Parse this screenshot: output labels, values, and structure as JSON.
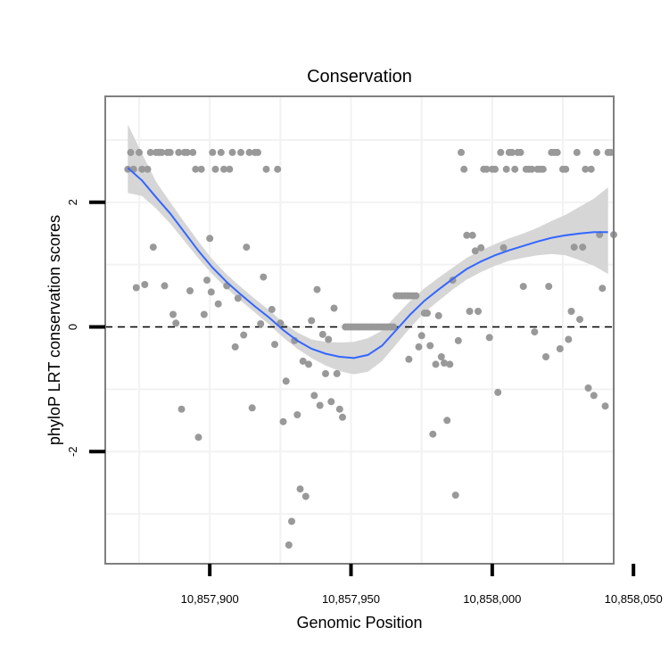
{
  "chart_data": {
    "type": "scatter",
    "title": "Conservation",
    "xlabel": "Genomic Position",
    "ylabel": "phyloP LRT conservation scores",
    "xlim": [
      10857863,
      10858043
    ],
    "ylim": [
      -3.8,
      3.7
    ],
    "x_ticks": [
      10857900,
      10857950,
      10858000,
      10858050
    ],
    "x_tick_labels": [
      "10,857,900",
      "10,857,950",
      "10,858,000",
      "10,858,050"
    ],
    "y_ticks": [
      -2,
      0,
      2
    ],
    "y_tick_labels": [
      "-2",
      "0",
      "2"
    ],
    "reference_line": {
      "y": 0,
      "style": "dashed"
    },
    "grid": true,
    "colors": {
      "points": "#999999",
      "smooth": "#3366FF",
      "band": "#d6d6d6",
      "panel_border": "#7f7f7f"
    },
    "series": [
      {
        "name": "scores",
        "points": [
          [
            10857871,
            2.53
          ],
          [
            10857872,
            2.8
          ],
          [
            10857873,
            2.53
          ],
          [
            10857874,
            0.63
          ],
          [
            10857875,
            2.8
          ],
          [
            10857876,
            2.53
          ],
          [
            10857877,
            0.68
          ],
          [
            10857878,
            2.53
          ],
          [
            10857879,
            2.8
          ],
          [
            10857880,
            1.28
          ],
          [
            10857881,
            2.8
          ],
          [
            10857882,
            2.8
          ],
          [
            10857883,
            2.8
          ],
          [
            10857884,
            0.66
          ],
          [
            10857885,
            2.8
          ],
          [
            10857886,
            2.8
          ],
          [
            10857887,
            0.2
          ],
          [
            10857888,
            0.06
          ],
          [
            10857889,
            2.8
          ],
          [
            10857890,
            -1.32
          ],
          [
            10857891,
            2.8
          ],
          [
            10857892,
            2.8
          ],
          [
            10857893,
            0.58
          ],
          [
            10857894,
            2.8
          ],
          [
            10857895,
            2.53
          ],
          [
            10857896,
            -1.77
          ],
          [
            10857897,
            2.53
          ],
          [
            10857898,
            0.2
          ],
          [
            10857899,
            0.75
          ],
          [
            10857900,
            1.42
          ],
          [
            10857900.5,
            0.56
          ],
          [
            10857901,
            2.8
          ],
          [
            10857902,
            2.53
          ],
          [
            10857903,
            0.37
          ],
          [
            10857904,
            2.8
          ],
          [
            10857905,
            2.53
          ],
          [
            10857906,
            0.66
          ],
          [
            10857907,
            2.53
          ],
          [
            10857908,
            2.8
          ],
          [
            10857909,
            -0.32
          ],
          [
            10857910,
            0.46
          ],
          [
            10857911,
            2.8
          ],
          [
            10857912,
            -0.13
          ],
          [
            10857913,
            1.28
          ],
          [
            10857914,
            2.8
          ],
          [
            10857915,
            -1.3
          ],
          [
            10857916,
            2.8
          ],
          [
            10857917,
            2.8
          ],
          [
            10857918,
            0.05
          ],
          [
            10857919,
            0.8
          ],
          [
            10857920,
            2.53
          ],
          [
            10857922,
            0.28
          ],
          [
            10857923,
            -0.28
          ],
          [
            10857924,
            2.53
          ],
          [
            10857925,
            0.06
          ],
          [
            10857926,
            -1.52
          ],
          [
            10857927,
            -0.87
          ],
          [
            10857928,
            -3.5
          ],
          [
            10857929,
            -3.12
          ],
          [
            10857930,
            -0.22
          ],
          [
            10857931,
            -1.41
          ],
          [
            10857932,
            -2.6
          ],
          [
            10857933,
            -0.55
          ],
          [
            10857934,
            -2.72
          ],
          [
            10857935,
            -0.6
          ],
          [
            10857936,
            0.1
          ],
          [
            10857937,
            -1.1
          ],
          [
            10857938,
            0.6
          ],
          [
            10857939,
            -1.26
          ],
          [
            10857940,
            -0.12
          ],
          [
            10857941,
            -0.75
          ],
          [
            10857942,
            -0.2
          ],
          [
            10857943,
            -1.2
          ],
          [
            10857944,
            0.3
          ],
          [
            10857945,
            -0.75
          ],
          [
            10857946,
            -1.32
          ],
          [
            10857947,
            -1.45
          ],
          [
            10857948,
            0.0
          ],
          [
            10857949,
            0.0
          ],
          [
            10857950,
            0.0
          ],
          [
            10857951,
            0.0
          ],
          [
            10857952,
            0.0
          ],
          [
            10857953,
            0.0
          ],
          [
            10857954,
            0.0
          ],
          [
            10857955,
            0.0
          ],
          [
            10857956,
            0.0
          ],
          [
            10857957,
            0.0
          ],
          [
            10857958,
            0.0
          ],
          [
            10857959,
            0.0
          ],
          [
            10857960,
            0.0
          ],
          [
            10857961,
            0.0
          ],
          [
            10857962,
            0.0
          ],
          [
            10857963,
            0.0
          ],
          [
            10857964,
            0.0
          ],
          [
            10857965,
            0.0
          ],
          [
            10857966,
            0.5
          ],
          [
            10857967,
            0.5
          ],
          [
            10857968,
            0.5
          ],
          [
            10857969,
            0.5
          ],
          [
            10857970,
            0.5
          ],
          [
            10857970.5,
            -0.52
          ],
          [
            10857971,
            0.5
          ],
          [
            10857972,
            0.5
          ],
          [
            10857973,
            0.5
          ],
          [
            10857974,
            -0.32
          ],
          [
            10857975,
            -0.14
          ],
          [
            10857976,
            0.22
          ],
          [
            10857977,
            0.22
          ],
          [
            10857978,
            -0.3
          ],
          [
            10857979,
            -1.72
          ],
          [
            10857980,
            -0.6
          ],
          [
            10857981,
            0.18
          ],
          [
            10857982,
            -0.48
          ],
          [
            10857983,
            -0.58
          ],
          [
            10857984,
            -1.5
          ],
          [
            10857985,
            -0.6
          ],
          [
            10857986,
            0.75
          ],
          [
            10857987,
            -2.7
          ],
          [
            10857988,
            -0.22
          ],
          [
            10857989,
            2.8
          ],
          [
            10857990,
            2.53
          ],
          [
            10857991,
            1.47
          ],
          [
            10857992,
            0.25
          ],
          [
            10857993,
            1.47
          ],
          [
            10857994,
            1.22
          ],
          [
            10857995,
            0.25
          ],
          [
            10857996,
            1.27
          ],
          [
            10857997,
            2.53
          ],
          [
            10857998,
            2.53
          ],
          [
            10857999,
            -0.17
          ],
          [
            10858000,
            2.53
          ],
          [
            10858001,
            2.53
          ],
          [
            10858002,
            -1.05
          ],
          [
            10858003,
            2.8
          ],
          [
            10858004,
            1.27
          ],
          [
            10858005,
            2.53
          ],
          [
            10858006,
            2.8
          ],
          [
            10858007,
            2.8
          ],
          [
            10858008,
            2.53
          ],
          [
            10858009,
            2.8
          ],
          [
            10858010,
            2.8
          ],
          [
            10858011,
            0.65
          ],
          [
            10858012,
            2.53
          ],
          [
            10858013,
            2.53
          ],
          [
            10858014,
            2.53
          ],
          [
            10858015,
            -0.08
          ],
          [
            10858016,
            2.53
          ],
          [
            10858017,
            2.53
          ],
          [
            10858018,
            2.53
          ],
          [
            10858019,
            -0.48
          ],
          [
            10858020,
            0.65
          ],
          [
            10858021,
            2.8
          ],
          [
            10858022,
            2.8
          ],
          [
            10858023,
            2.8
          ],
          [
            10858024,
            -0.35
          ],
          [
            10858025,
            2.53
          ],
          [
            10858026,
            2.53
          ],
          [
            10858027,
            -0.2
          ],
          [
            10858028,
            0.25
          ],
          [
            10858029,
            1.28
          ],
          [
            10858030,
            2.8
          ],
          [
            10858031,
            0.12
          ],
          [
            10858032,
            1.28
          ],
          [
            10858033,
            2.53
          ],
          [
            10858034,
            -0.98
          ],
          [
            10858035,
            2.53
          ],
          [
            10858036,
            -1.1
          ],
          [
            10858037,
            2.8
          ],
          [
            10858038,
            1.48
          ],
          [
            10858039,
            0.62
          ],
          [
            10858040,
            -1.27
          ],
          [
            10858041,
            2.8
          ],
          [
            10858042,
            2.8
          ],
          [
            10858043,
            1.48
          ]
        ]
      }
    ],
    "smooth": {
      "x": [
        10857871,
        10857876,
        10857881,
        10857886,
        10857891,
        10857896,
        10857901,
        10857906,
        10857911,
        10857916,
        10857921,
        10857926,
        10857931,
        10857936,
        10857941,
        10857946,
        10857951,
        10857956,
        10857961,
        10857966,
        10857971,
        10857976,
        10857981,
        10857986,
        10857991,
        10857996,
        10858001,
        10858006,
        10858011,
        10858016,
        10858021,
        10858026,
        10858031,
        10858036,
        10858041
      ],
      "y": [
        2.55,
        2.35,
        2.08,
        1.82,
        1.52,
        1.22,
        0.95,
        0.72,
        0.52,
        0.33,
        0.15,
        -0.05,
        -0.22,
        -0.35,
        -0.43,
        -0.48,
        -0.5,
        -0.45,
        -0.3,
        -0.05,
        0.2,
        0.42,
        0.6,
        0.77,
        0.93,
        1.05,
        1.15,
        1.23,
        1.3,
        1.37,
        1.43,
        1.47,
        1.5,
        1.52,
        1.52
      ],
      "lower": [
        2.15,
        2.1,
        1.9,
        1.66,
        1.38,
        1.1,
        0.84,
        0.62,
        0.42,
        0.23,
        0.04,
        -0.17,
        -0.35,
        -0.5,
        -0.62,
        -0.71,
        -0.76,
        -0.72,
        -0.55,
        -0.28,
        -0.01,
        0.23,
        0.42,
        0.6,
        0.76,
        0.88,
        0.98,
        1.06,
        1.11,
        1.15,
        1.17,
        1.15,
        1.07,
        0.98,
        0.85
      ],
      "upper": [
        3.25,
        2.78,
        2.33,
        2.0,
        1.68,
        1.37,
        1.08,
        0.84,
        0.64,
        0.45,
        0.27,
        0.07,
        -0.09,
        -0.2,
        -0.24,
        -0.25,
        -0.24,
        -0.18,
        -0.06,
        0.18,
        0.42,
        0.62,
        0.79,
        0.95,
        1.11,
        1.23,
        1.33,
        1.42,
        1.5,
        1.59,
        1.7,
        1.8,
        1.93,
        2.06,
        2.24
      ]
    }
  }
}
